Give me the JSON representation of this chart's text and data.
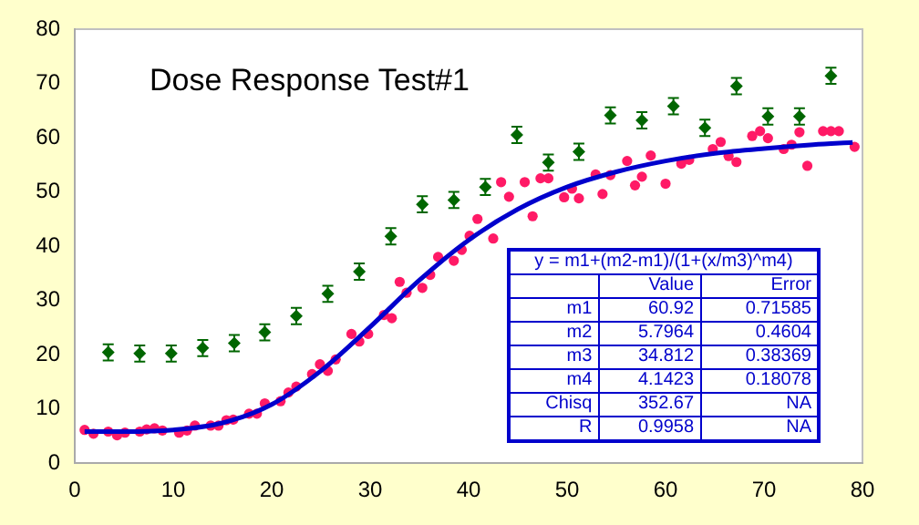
{
  "chart_data": {
    "type": "scatter",
    "title": "Dose Response Test#1",
    "xlim": [
      0,
      80
    ],
    "xticks": [
      0,
      10,
      20,
      30,
      40,
      50,
      60,
      70,
      80
    ],
    "ylim": [
      0,
      80
    ],
    "yticks": [
      0,
      10,
      20,
      30,
      40,
      50,
      60,
      70,
      80
    ],
    "grid": false,
    "legend": false,
    "series": [
      {
        "type": "scatter",
        "color": "#006600",
        "x": [
          3.4,
          6.6,
          9.8,
          13.0,
          16.2,
          19.3,
          22.5,
          25.7,
          28.9,
          32.1,
          35.3,
          38.5,
          41.7,
          44.9,
          48.1,
          51.2,
          54.4,
          57.6,
          60.8,
          64.0,
          67.2,
          70.4,
          73.6,
          76.8
        ],
        "values": [
          20.4,
          20.2,
          20.2,
          21.2,
          22.1,
          24.1,
          27.1,
          31.2,
          35.3,
          41.8,
          47.7,
          48.5,
          50.9,
          60.5,
          55.4,
          57.4,
          64.1,
          63.2,
          65.8,
          61.8,
          69.5,
          63.9,
          63.9,
          71.4
        ],
        "errors": [
          1.5,
          1.5,
          1.5,
          1.5,
          1.5,
          1.5,
          1.5,
          1.5,
          1.5,
          1.5,
          1.5,
          1.5,
          1.5,
          1.5,
          1.5,
          1.5,
          1.5,
          1.5,
          1.5,
          1.5,
          1.5,
          1.5,
          1.5,
          1.5
        ]
      },
      {
        "type": "scatter",
        "marker": "circle",
        "color": "#ff1a66",
        "x": [
          1.0,
          1.9,
          3.4,
          4.3,
          5.1,
          6.6,
          7.3,
          8.1,
          8.9,
          10.6,
          11.4,
          12.2,
          13.8,
          14.6,
          15.4,
          16.1,
          17.7,
          18.5,
          19.3,
          20.9,
          21.7,
          22.5,
          24.1,
          24.9,
          25.7,
          26.5,
          28.1,
          28.9,
          29.8,
          31.4,
          32.2,
          33.0,
          33.7,
          35.3,
          36.1,
          36.9,
          38.5,
          39.3,
          40.1,
          40.9,
          42.5,
          43.3,
          44.1,
          45.7,
          46.5,
          47.3,
          48.1,
          49.7,
          50.5,
          51.2,
          52.9,
          53.6,
          54.4,
          56.1,
          56.9,
          57.6,
          58.5,
          60.0,
          61.6,
          62.4,
          64.8,
          65.6,
          66.4,
          67.2,
          68.8,
          69.6,
          70.4,
          72.0,
          72.8,
          73.6,
          74.4,
          76.0,
          76.8,
          77.6,
          79.2
        ],
        "values": [
          6.1,
          5.4,
          5.8,
          5.1,
          5.6,
          5.8,
          6.2,
          6.4,
          6.0,
          5.6,
          6.0,
          6.9,
          6.9,
          6.9,
          7.9,
          8.0,
          9.1,
          9.1,
          11.0,
          11.4,
          13.0,
          14.1,
          16.4,
          18.2,
          17.0,
          19.1,
          23.8,
          22.4,
          23.8,
          27.3,
          26.7,
          33.4,
          31.4,
          32.3,
          34.7,
          38.0,
          37.3,
          39.3,
          41.9,
          45.0,
          41.4,
          51.8,
          49.1,
          51.8,
          45.5,
          52.5,
          52.5,
          49.0,
          50.6,
          48.8,
          53.2,
          49.6,
          53.1,
          55.7,
          51.2,
          52.8,
          56.7,
          51.5,
          55.2,
          55.9,
          57.9,
          59.2,
          56.6,
          55.5,
          60.3,
          61.2,
          59.9,
          57.9,
          58.7,
          61.0,
          54.8,
          61.2,
          61.2,
          61.2,
          58.3
        ]
      },
      {
        "type": "line",
        "marker": "none",
        "line_style": "solid",
        "color": "#0000cc",
        "x": [
          1,
          5,
          10,
          15,
          20,
          25,
          30,
          35,
          40,
          45,
          50,
          55,
          60,
          65,
          70,
          75,
          79
        ],
        "values": [
          5.8,
          5.8,
          6.1,
          7.4,
          10.8,
          17.0,
          25.1,
          33.7,
          41.1,
          46.8,
          50.9,
          53.7,
          55.7,
          57.1,
          58.0,
          58.7,
          59.1
        ]
      }
    ],
    "annotations": [
      "y = m1+(m2-m1)/(1+(x/m3)^m4)",
      "Value",
      "Error",
      "m1",
      "60.92",
      "0.71585",
      "m2",
      "5.7964",
      "0.4604",
      "m3",
      "34.812",
      "0.38369",
      "m4",
      "4.1423",
      "0.18078",
      "Chisq",
      "352.67",
      "NA",
      "R",
      "0.9958",
      "NA"
    ]
  }
}
